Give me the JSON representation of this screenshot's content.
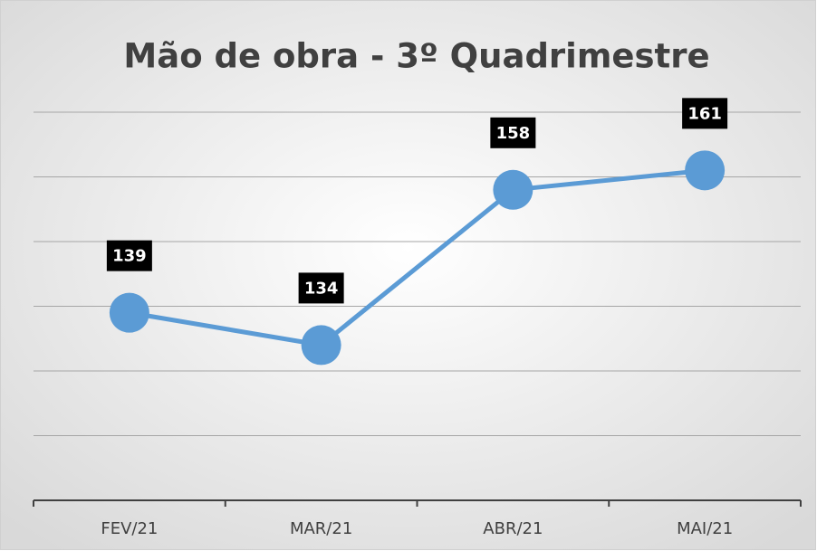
{
  "chart_data": {
    "type": "line",
    "title": "Mão de obra - 3º Quadrimestre",
    "categories": [
      "FEV/21",
      "MAR/21",
      "ABR/21",
      "MAI/21"
    ],
    "series": [
      {
        "name": "Mão de obra",
        "color": "#5b9bd5",
        "values": [
          139,
          134,
          158,
          161
        ]
      }
    ],
    "ylim": [
      110,
      170
    ],
    "yticks": [
      110,
      120,
      130,
      140,
      150,
      160,
      170
    ],
    "grid": true
  }
}
